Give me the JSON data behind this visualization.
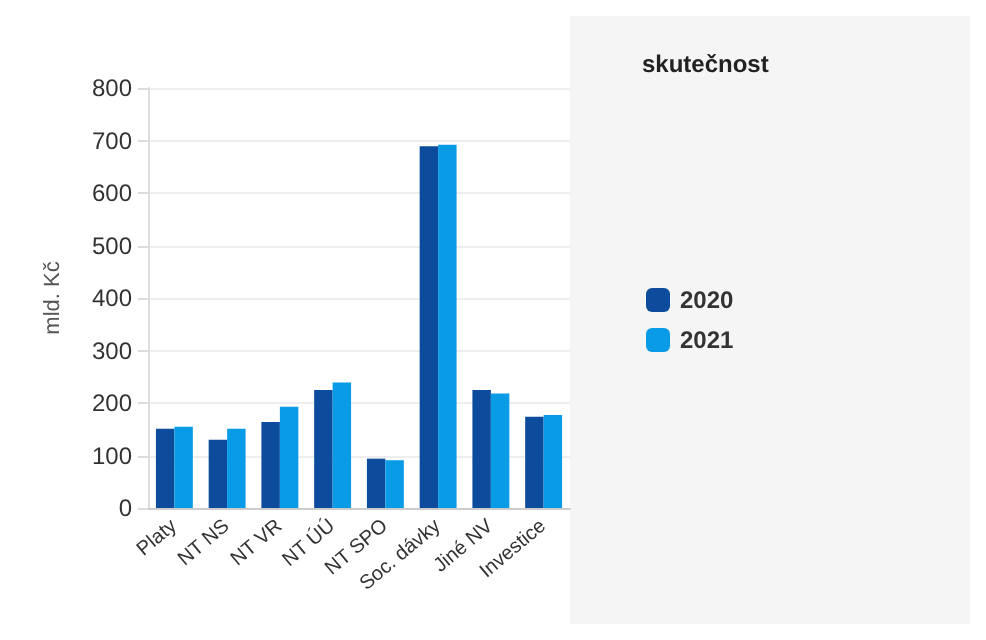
{
  "chart_data": {
    "type": "bar",
    "ylabel": "mld. Kč",
    "legend_title": "skutečnost",
    "categories": [
      "Platy",
      "NT NS",
      "NT VR",
      "NT ÚÚ",
      "NT SPO",
      "Soc. dávky",
      "Jiné NV",
      "Investice"
    ],
    "series": [
      {
        "name": "2020",
        "color": "#0d4c9c",
        "values": [
          151,
          130,
          164,
          225,
          94,
          689,
          225,
          174
        ]
      },
      {
        "name": "2021",
        "color": "#0a9be6",
        "values": [
          155,
          151,
          193,
          239,
          91,
          692,
          218,
          177
        ]
      }
    ],
    "ylim": [
      0,
      800
    ],
    "yticks": [
      0,
      100,
      200,
      300,
      400,
      500,
      600,
      700,
      800
    ],
    "grid": true,
    "legend": "right"
  }
}
